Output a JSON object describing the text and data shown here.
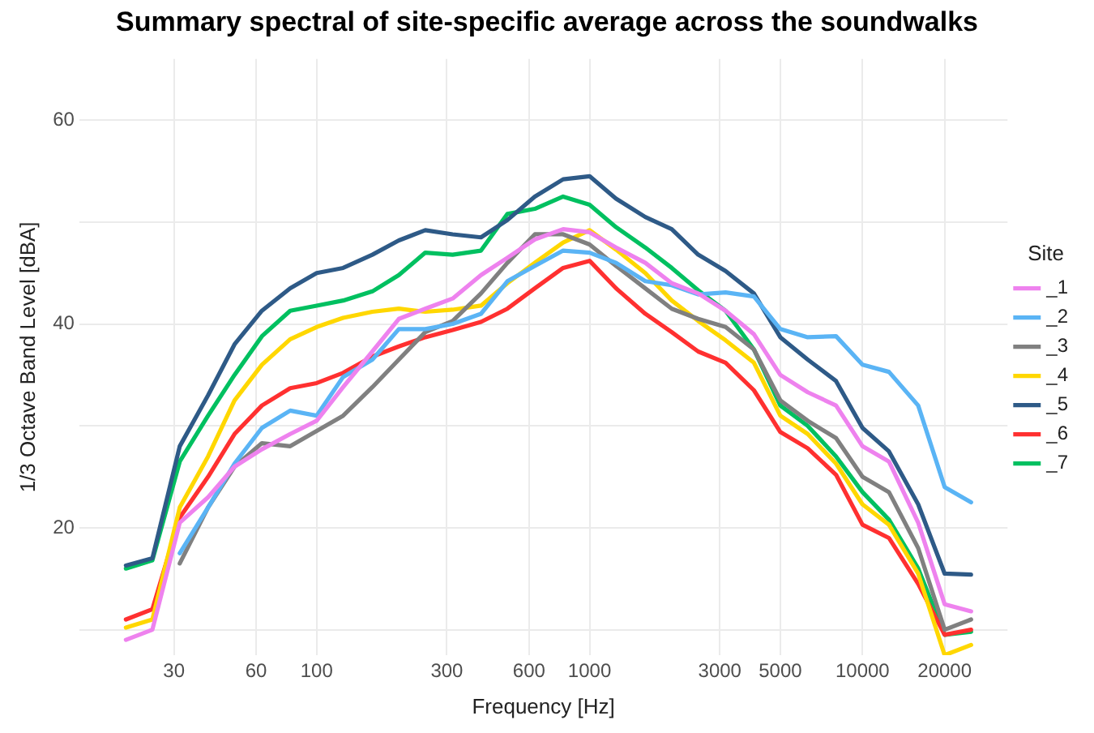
{
  "chart_data": {
    "type": "line",
    "title": "Summary spectral of site-specific average across the soundwalks",
    "xlabel": "Frequency [Hz]",
    "ylabel": "1/3 Octave Band Level [dBA]",
    "legend_title": "Site",
    "legend": "right",
    "grid": true,
    "marker": "none",
    "line_style": "solid",
    "log": "x",
    "x": [
      20,
      25,
      31.5,
      40,
      50,
      63,
      80,
      100,
      125,
      160,
      200,
      250,
      315,
      400,
      500,
      630,
      800,
      1000,
      1250,
      1600,
      2000,
      2500,
      3150,
      4000,
      5000,
      6300,
      8000,
      10000,
      12500,
      16000,
      20000,
      25000
    ],
    "xlim": [
      13.5,
      34000
    ],
    "xticks": [
      30,
      60,
      100,
      300,
      600,
      1000,
      3000,
      5000,
      10000,
      20000
    ],
    "ylim": [
      7.5,
      66
    ],
    "yticks": [
      {
        "value": 10,
        "label": null
      },
      20,
      {
        "value": 30,
        "label": null
      },
      40,
      {
        "value": 50,
        "label": null
      },
      60
    ],
    "series": [
      {
        "name": "_1",
        "color": "#ee82ee",
        "values": [
          9,
          10,
          20.5,
          23,
          26,
          27.7,
          29.2,
          30.5,
          33.8,
          37.3,
          40.5,
          41.5,
          42.5,
          44.8,
          46.5,
          48.3,
          49.3,
          49,
          47.5,
          46,
          44,
          43,
          41.3,
          39,
          35,
          33.3,
          32,
          28,
          26.5,
          20.5,
          12.5,
          11.8
        ]
      },
      {
        "name": "_2",
        "color": "#5ab4f5",
        "values": [
          null,
          null,
          17.5,
          22,
          26.3,
          29.8,
          31.5,
          31,
          34.8,
          36.5,
          39.5,
          39.5,
          40,
          41,
          44.2,
          45.7,
          47.2,
          47,
          46,
          44.2,
          43.8,
          42.9,
          43.1,
          42.7,
          39.5,
          38.7,
          38.8,
          36,
          35.3,
          32,
          24,
          22.5
        ]
      },
      {
        "name": "_3",
        "color": "#808080",
        "values": [
          null,
          null,
          16.5,
          22,
          26,
          28.3,
          28,
          29.5,
          31,
          33.8,
          36.5,
          39.2,
          40.3,
          43,
          46,
          48.8,
          48.8,
          47.8,
          45.7,
          43.5,
          41.5,
          40.5,
          39.7,
          37.5,
          32.5,
          30.5,
          28.8,
          25,
          23.5,
          18,
          10,
          11
        ]
      },
      {
        "name": "_4",
        "color": "#ffd700",
        "values": [
          10.2,
          11,
          22,
          27,
          32.5,
          36,
          38.5,
          39.7,
          40.6,
          41.2,
          41.5,
          41.2,
          41.4,
          41.8,
          44,
          46,
          48,
          49.2,
          47.3,
          45,
          42.3,
          40.3,
          38.4,
          36.2,
          31,
          29.2,
          26.3,
          22.3,
          20.3,
          15.5,
          7.5,
          8.5
        ]
      },
      {
        "name": "_5",
        "color": "#2e5a87",
        "values": [
          16.3,
          17,
          28,
          33,
          38,
          41.3,
          43.5,
          45,
          45.5,
          46.8,
          48.2,
          49.2,
          48.8,
          48.5,
          50.2,
          52.5,
          54.2,
          54.5,
          52.3,
          50.5,
          49.3,
          46.8,
          45.2,
          43,
          38.7,
          36.5,
          34.4,
          29.8,
          27.5,
          22.3,
          15.5,
          15.4
        ]
      },
      {
        "name": "_6",
        "color": "#ff3030",
        "values": [
          11,
          12,
          21,
          25,
          29.2,
          32,
          33.7,
          34.2,
          35.2,
          36.8,
          37.8,
          38.7,
          39.4,
          40.2,
          41.5,
          43.5,
          45.5,
          46.2,
          43.5,
          41,
          39.2,
          37.3,
          36.2,
          33.5,
          29.4,
          27.8,
          25.2,
          20.3,
          19,
          14.5,
          9.5,
          10
        ]
      },
      {
        "name": "_7",
        "color": "#00c060",
        "values": [
          16,
          16.8,
          26.5,
          31,
          35,
          38.8,
          41.3,
          41.8,
          42.3,
          43.2,
          44.8,
          47,
          46.8,
          47.2,
          50.8,
          51.3,
          52.5,
          51.7,
          49.5,
          47.5,
          45.5,
          43.3,
          41.3,
          37.5,
          32,
          30,
          27,
          23.5,
          20.8,
          16,
          9.5,
          9.8
        ]
      }
    ]
  }
}
